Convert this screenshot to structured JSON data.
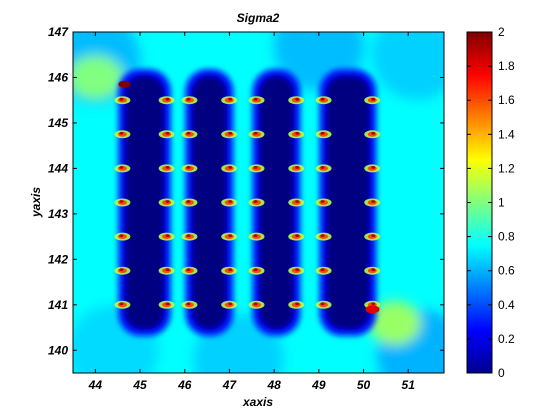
{
  "chart_data": {
    "type": "heatmap",
    "title": "Sigma2",
    "xlabel": "xaxis",
    "ylabel": "yaxis",
    "xlim": [
      43.5,
      51.8
    ],
    "ylim": [
      139.5,
      147
    ],
    "x_ticks": [
      "44",
      "45",
      "46",
      "47",
      "48",
      "49",
      "50",
      "51"
    ],
    "y_ticks": [
      "140",
      "141",
      "142",
      "143",
      "144",
      "145",
      "146",
      "147"
    ],
    "x_tick_values": [
      44,
      45,
      46,
      47,
      48,
      49,
      50,
      51
    ],
    "y_tick_values": [
      140,
      141,
      142,
      143,
      144,
      145,
      146,
      147
    ],
    "background_value": 0.75,
    "low_stress_columns": [
      {
        "x_min": 44.65,
        "x_max": 45.55
      },
      {
        "x_min": 46.15,
        "x_max": 46.95
      },
      {
        "x_min": 47.65,
        "x_max": 48.45
      },
      {
        "x_min": 49.15,
        "x_max": 50.15
      }
    ],
    "rivet_rows_y": [
      141.0,
      141.75,
      142.5,
      143.25,
      144.0,
      144.75,
      145.5
    ],
    "peak_value": 2.0,
    "colorbar": {
      "min": 0,
      "max": 2,
      "ticks": [
        "0",
        "0.2",
        "0.4",
        "0.6",
        "0.8",
        "1",
        "1.2",
        "1.4",
        "1.6",
        "1.8",
        "2"
      ],
      "tick_values": [
        0,
        0.2,
        0.4,
        0.6,
        0.8,
        1.0,
        1.2,
        1.4,
        1.6,
        1.8,
        2.0
      ],
      "colormap": "jet"
    },
    "grid": false
  }
}
